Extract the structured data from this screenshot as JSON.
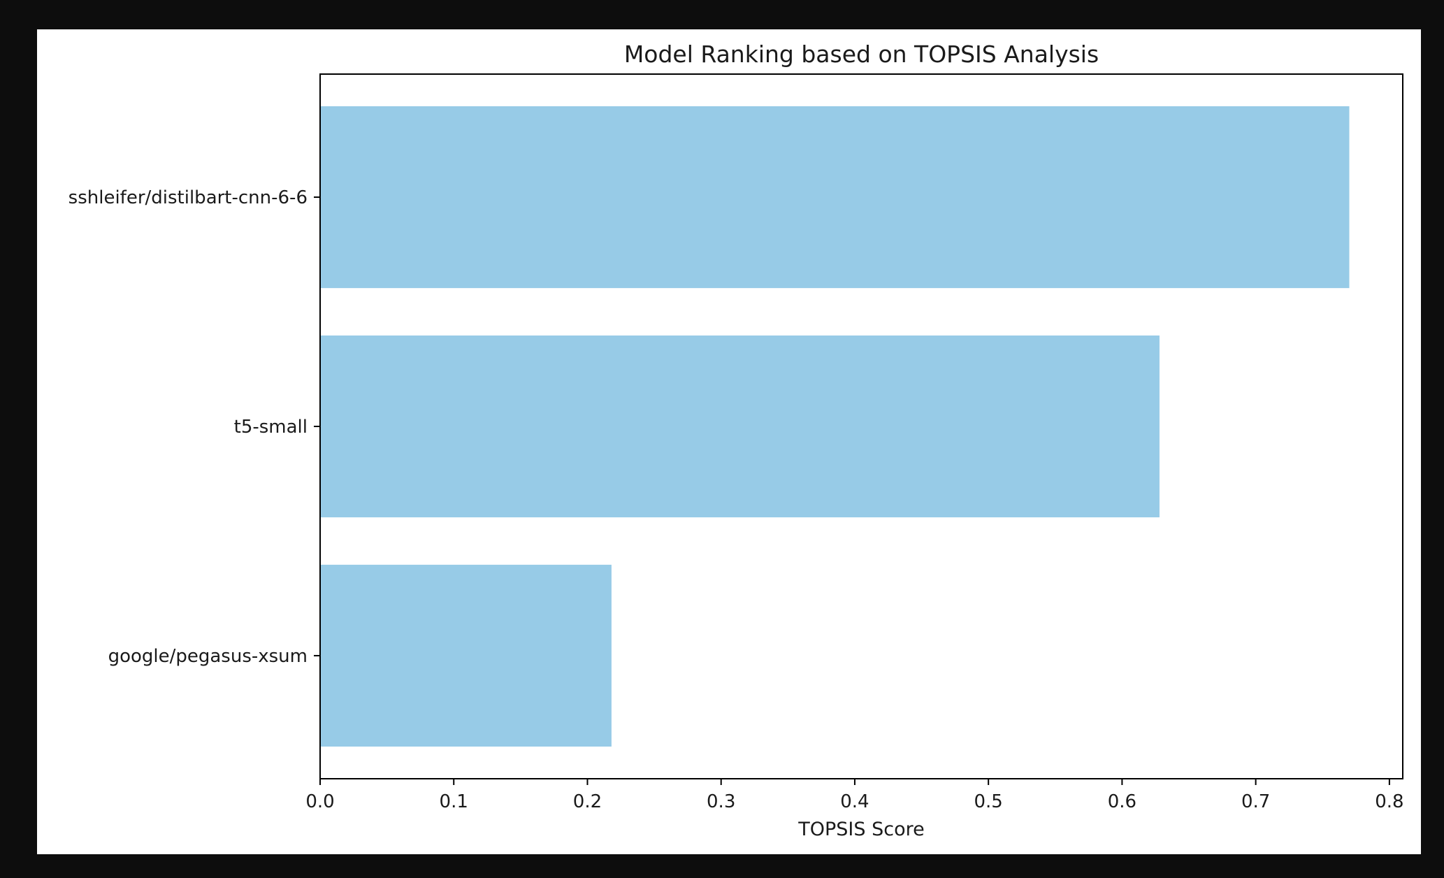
{
  "chart_data": {
    "type": "bar",
    "orientation": "horizontal",
    "title": "Model Ranking based on TOPSIS Analysis",
    "xlabel": "TOPSIS Score",
    "ylabel": "",
    "categories": [
      "sshleifer/distilbart-cnn-6-6",
      "t5-small",
      "google/pegasus-xsum"
    ],
    "values": [
      0.77,
      0.628,
      0.218
    ],
    "xlim": [
      0,
      0.81
    ],
    "xticks": [
      0.0,
      0.1,
      0.2,
      0.3,
      0.4,
      0.5,
      0.6,
      0.7,
      0.8
    ],
    "xtick_labels": [
      "0.0",
      "0.1",
      "0.2",
      "0.3",
      "0.4",
      "0.5",
      "0.6",
      "0.7",
      "0.8"
    ],
    "bar_color": "#97cbe7",
    "grid": false,
    "legend": false
  }
}
